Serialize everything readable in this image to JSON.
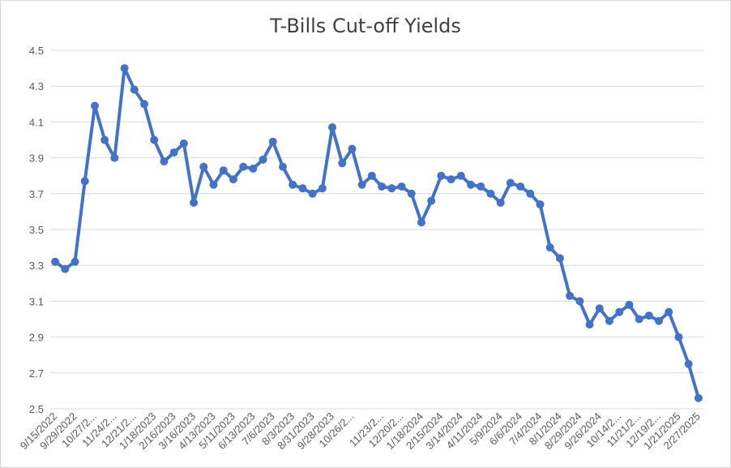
{
  "chart_data": {
    "type": "line",
    "title": "T-Bills Cut-off Yields",
    "xlabel": "",
    "ylabel": "",
    "ylim": [
      2.5,
      4.5
    ],
    "yticks": [
      2.5,
      2.7,
      2.9,
      3.1,
      3.3,
      3.5,
      3.7,
      3.9,
      4.1,
      4.3,
      4.5
    ],
    "ytick_labels": [
      "2.5",
      "2.7",
      "2.9",
      "3.1",
      "3.3",
      "3.5",
      "3.7",
      "3.9",
      "4.1",
      "4.3",
      "4.5"
    ],
    "grid": true,
    "legend": "none",
    "color": "#4472c4",
    "x_tick_labels": [
      "9/15/2022",
      "9/29/2022",
      "10/27/2...",
      "11/24/2...",
      "12/21/2...",
      "1/18/2023",
      "2/16/2023",
      "3/16/2023",
      "4/13/2023",
      "5/11/2023",
      "6/13/2023",
      "7/6/2023",
      "8/3/2023",
      "8/31/2023",
      "9/28/2023",
      "10/26/2...",
      "11/23/2...",
      "12/20/2...",
      "1/18/2024",
      "2/15/2024",
      "3/14/2024",
      "4/11/2024",
      "5/9/2024",
      "6/6/2024",
      "7/4/2024",
      "8/1/2024",
      "8/29/2024",
      "9/26/2024",
      "10/14/2...",
      "11/21/2...",
      "12/19/2...",
      "1/21/2025",
      "2/27/2025"
    ],
    "series": [
      {
        "values": [
          3.32,
          3.28,
          3.32,
          3.77,
          4.19,
          4.0,
          3.9,
          4.4,
          4.28,
          4.2,
          4.0,
          3.88,
          3.93,
          3.98,
          3.65,
          3.85,
          3.75,
          3.83,
          3.78,
          3.85,
          3.84,
          3.89,
          3.99,
          3.85,
          3.75,
          3.73,
          3.7,
          3.73,
          4.07,
          3.87,
          3.95,
          3.75,
          3.8,
          3.74,
          3.73,
          3.74,
          3.7,
          3.54,
          3.66,
          3.8,
          3.78,
          3.8,
          3.75,
          3.74,
          3.7,
          3.65,
          3.76,
          3.74,
          3.7,
          3.64,
          3.4,
          3.34,
          3.13,
          3.1,
          2.97,
          3.06,
          2.99,
          3.04,
          3.08,
          3.0,
          3.02,
          2.99,
          3.04,
          2.9,
          2.75,
          2.56
        ]
      }
    ]
  }
}
